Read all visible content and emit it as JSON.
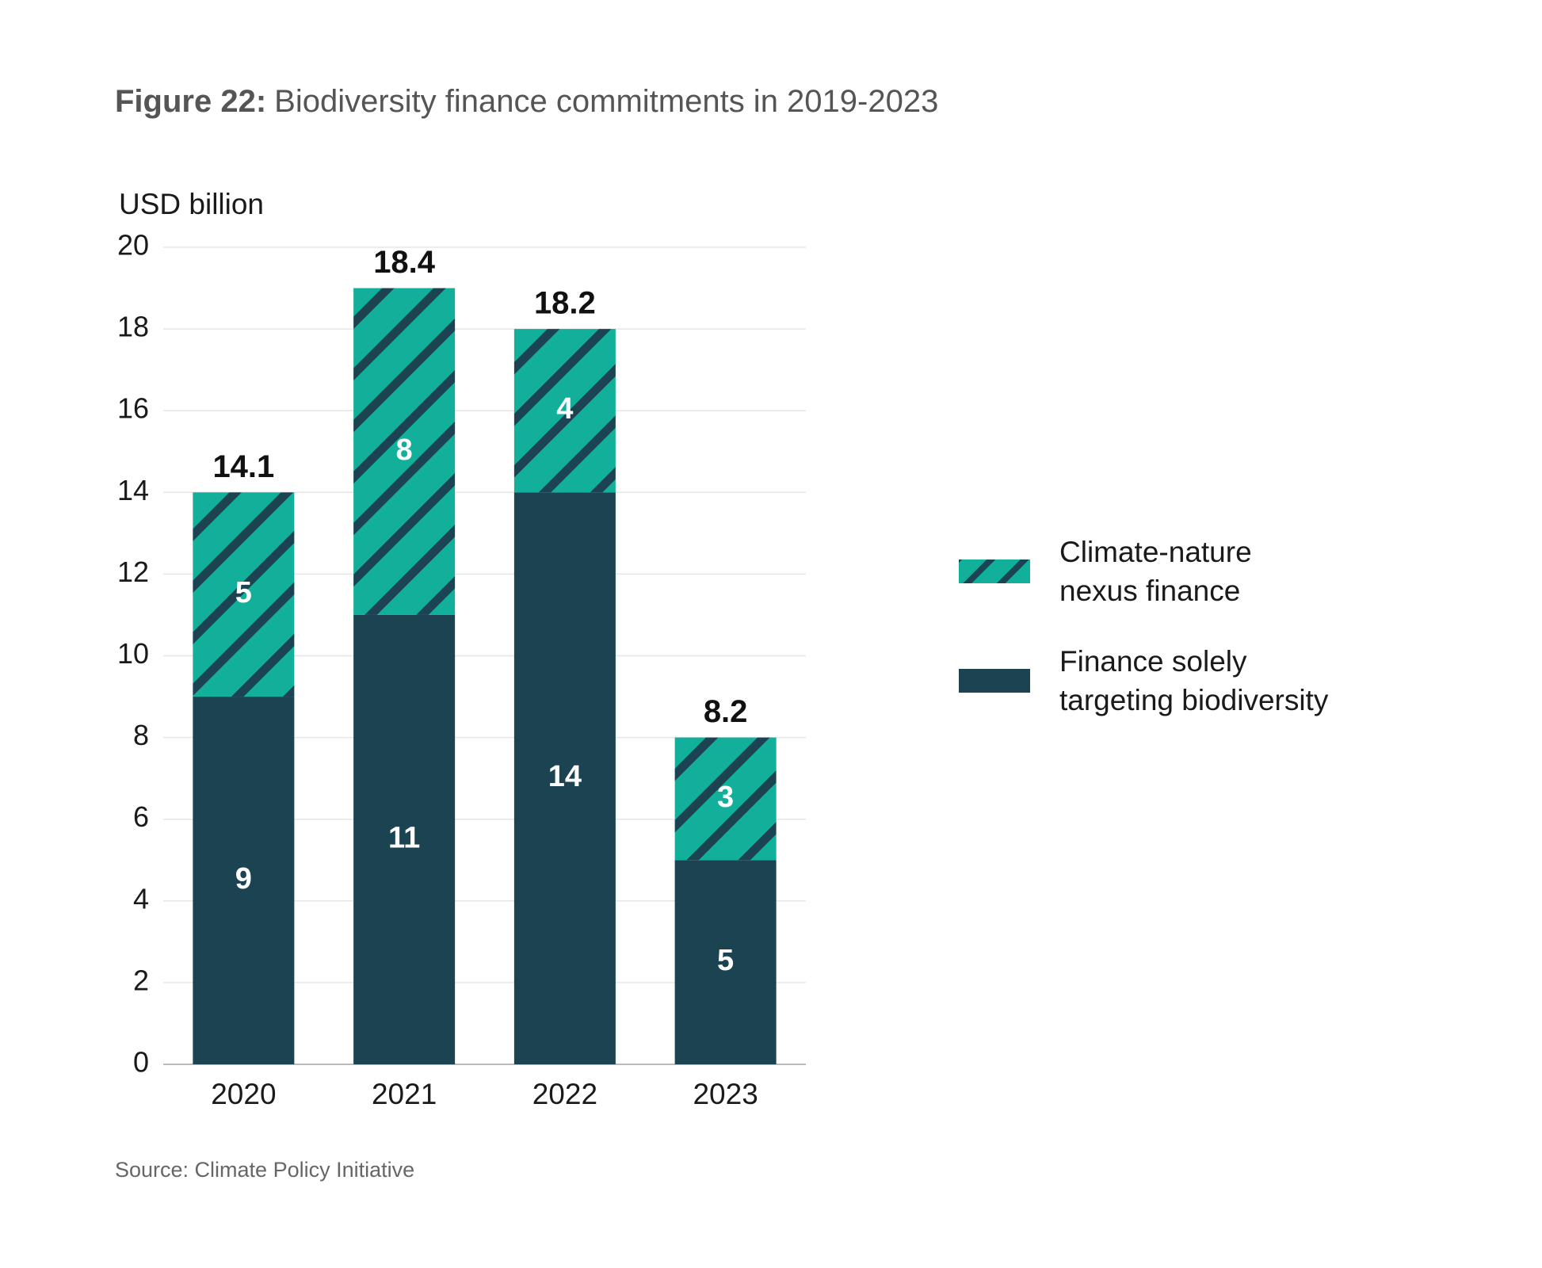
{
  "chart_data": {
    "type": "stacked_bar",
    "title_label": "Figure 22:",
    "title": "Biodiversity finance commitments in 2019-2023",
    "y_axis_label": "USD billion",
    "source": "Source: Climate Policy Initiative",
    "categories": [
      "2020",
      "2021",
      "2022",
      "2023"
    ],
    "series": [
      {
        "name": "Finance solely targeting biodiversity",
        "color": "#1b4352",
        "values": [
          9,
          11,
          14,
          5
        ]
      },
      {
        "name": "Climate-nature nexus finance",
        "color": "#12b09a",
        "stripe_color": "#1b4352",
        "values": [
          5,
          8,
          4,
          3
        ]
      }
    ],
    "totals": [
      14.1,
      18.4,
      18.2,
      8.2
    ],
    "ylim": [
      0,
      20
    ],
    "yticks": [
      0,
      2,
      4,
      6,
      8,
      10,
      12,
      14,
      16,
      18,
      20
    ],
    "grid": true
  }
}
